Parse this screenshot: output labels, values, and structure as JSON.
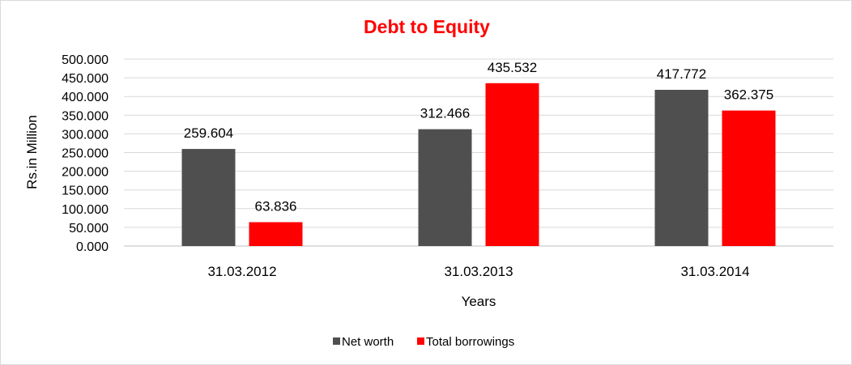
{
  "chart_data": {
    "type": "bar",
    "title": "Debt to Equity",
    "title_color": "#ff0000",
    "xlabel": "Years",
    "ylabel": "Rs.in Million",
    "categories": [
      "31.03.2012",
      "31.03.2013",
      "31.03.2014"
    ],
    "series": [
      {
        "name": "Net worth",
        "color": "#4f4f4f",
        "values": [
          259.604,
          312.466,
          417.772
        ],
        "labels": [
          "259.604",
          "312.466",
          "417.772"
        ]
      },
      {
        "name": "Total borrowings",
        "color": "#ff0000",
        "values": [
          63.836,
          435.532,
          362.375
        ],
        "labels": [
          "63.836",
          "435.532",
          "362.375"
        ]
      }
    ],
    "ylim": [
      0,
      500
    ],
    "yticks": [
      "0.000",
      "50.000",
      "100.000",
      "150.000",
      "200.000",
      "250.000",
      "300.000",
      "350.000",
      "400.000",
      "450.000",
      "500.000"
    ],
    "grid": true,
    "legend": "bottom"
  }
}
